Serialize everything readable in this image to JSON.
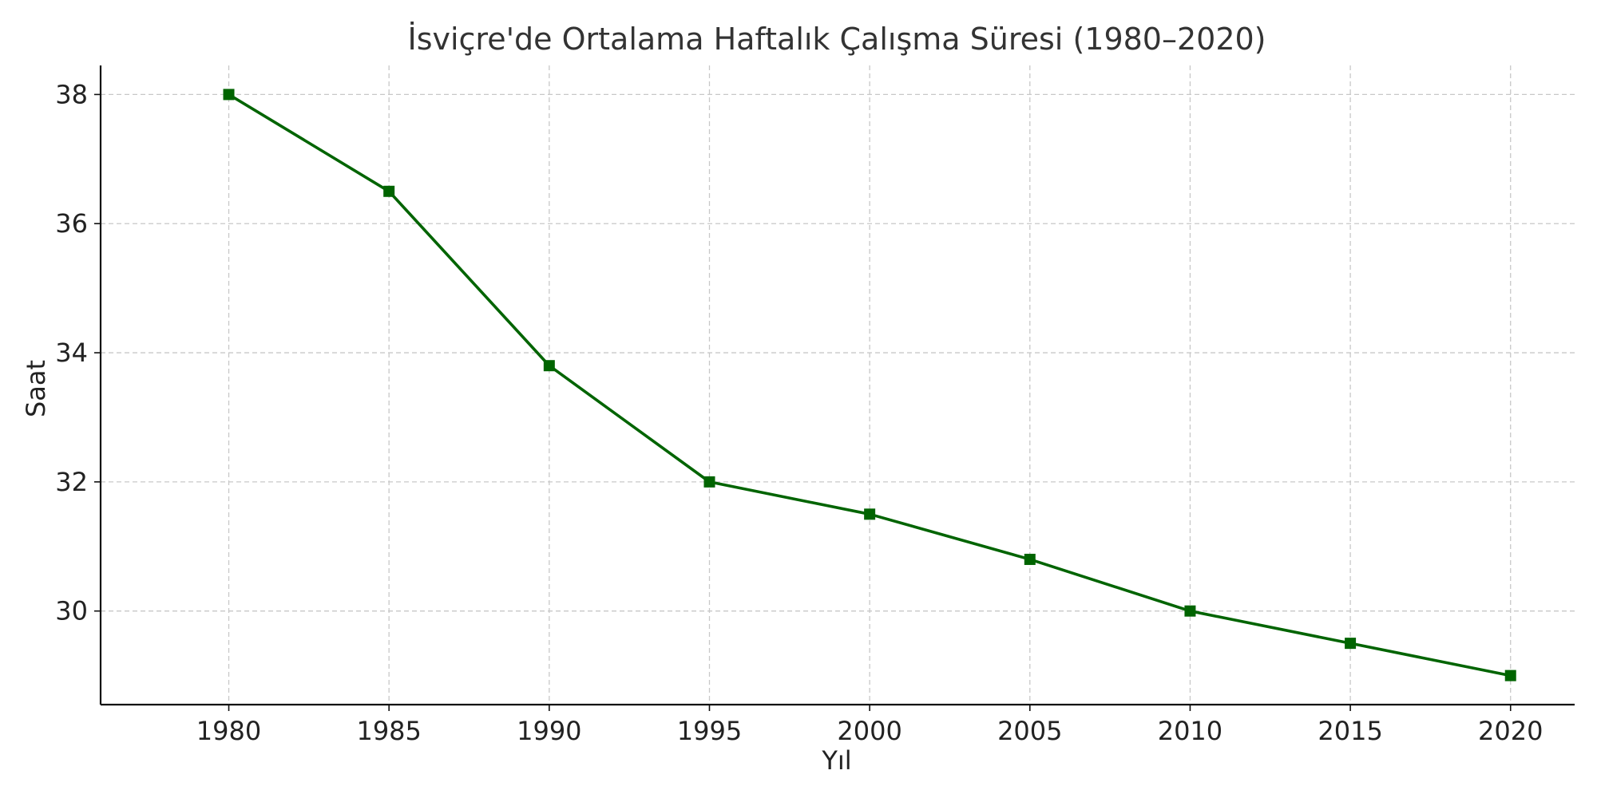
{
  "chart_data": {
    "type": "line",
    "title": "İsviçre'de Ortalama Haftalık Çalışma Süresi (1980–2020)",
    "xlabel": "Yıl",
    "ylabel": "Saat",
    "x": [
      1980,
      1985,
      1990,
      1995,
      2000,
      2005,
      2010,
      2015,
      2020
    ],
    "series": [
      {
        "values": [
          38.0,
          36.5,
          33.8,
          32.0,
          31.5,
          30.8,
          30.0,
          29.5,
          29.0
        ]
      }
    ],
    "xlim": [
      1976,
      2022
    ],
    "ylim": [
      28.55,
      38.45
    ],
    "xticks": [
      "1980",
      "1985",
      "1990",
      "1995",
      "2000",
      "2005",
      "2010",
      "2015",
      "2020"
    ],
    "yticks": [
      "30",
      "32",
      "34",
      "36",
      "38"
    ],
    "grid": true,
    "marker": "square",
    "line_color": "#006400",
    "marker_color": "#006400"
  }
}
